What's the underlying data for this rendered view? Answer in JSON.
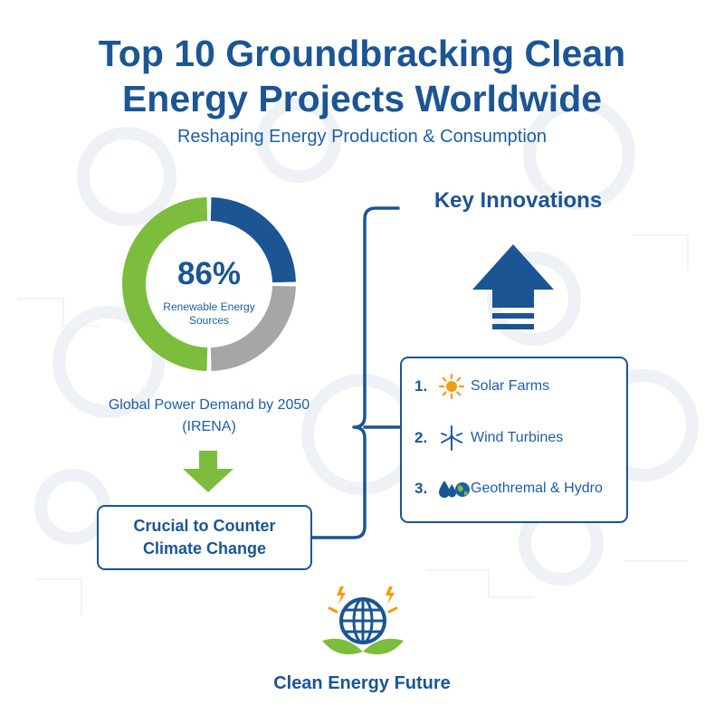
{
  "header": {
    "title_line1": "Top 10 Groundbracking Clean",
    "title_line2": "Energy Projects Worldwide",
    "subtitle": "Reshaping Energy Production & Consumption"
  },
  "stat": {
    "percent": "86%",
    "label": "Renewable Energy Sources",
    "segments": [
      {
        "share": 0.25,
        "color": "#1b5594"
      },
      {
        "share": 0.25,
        "color": "#a6a6a6"
      },
      {
        "share": 0.5,
        "color": "#7cbd3d"
      }
    ],
    "demand_line1": "Global Power Demand by 2050",
    "demand_line2": "(IRENA)"
  },
  "climate": {
    "line1": "Crucial to Counter",
    "line2": "Climate Change"
  },
  "innovations": {
    "title": "Key Innovations",
    "items": [
      {
        "num": "1.",
        "label": "Solar Farms",
        "icon": "sun-icon"
      },
      {
        "num": "2.",
        "label": "Wind Turbines",
        "icon": "wind-turbine-icon"
      },
      {
        "num": "3.",
        "label": "Geothremal & Hydro",
        "icon": "water-drops-globe-icon"
      }
    ]
  },
  "footer": {
    "logo_text": "Clean Energy Future",
    "logo_icon": "globe-leaves-lightning-icon"
  },
  "colors": {
    "primary_blue": "#1b5594",
    "green": "#7cbd3d",
    "gray": "#a6a6a6",
    "orange": "#f39c12"
  }
}
